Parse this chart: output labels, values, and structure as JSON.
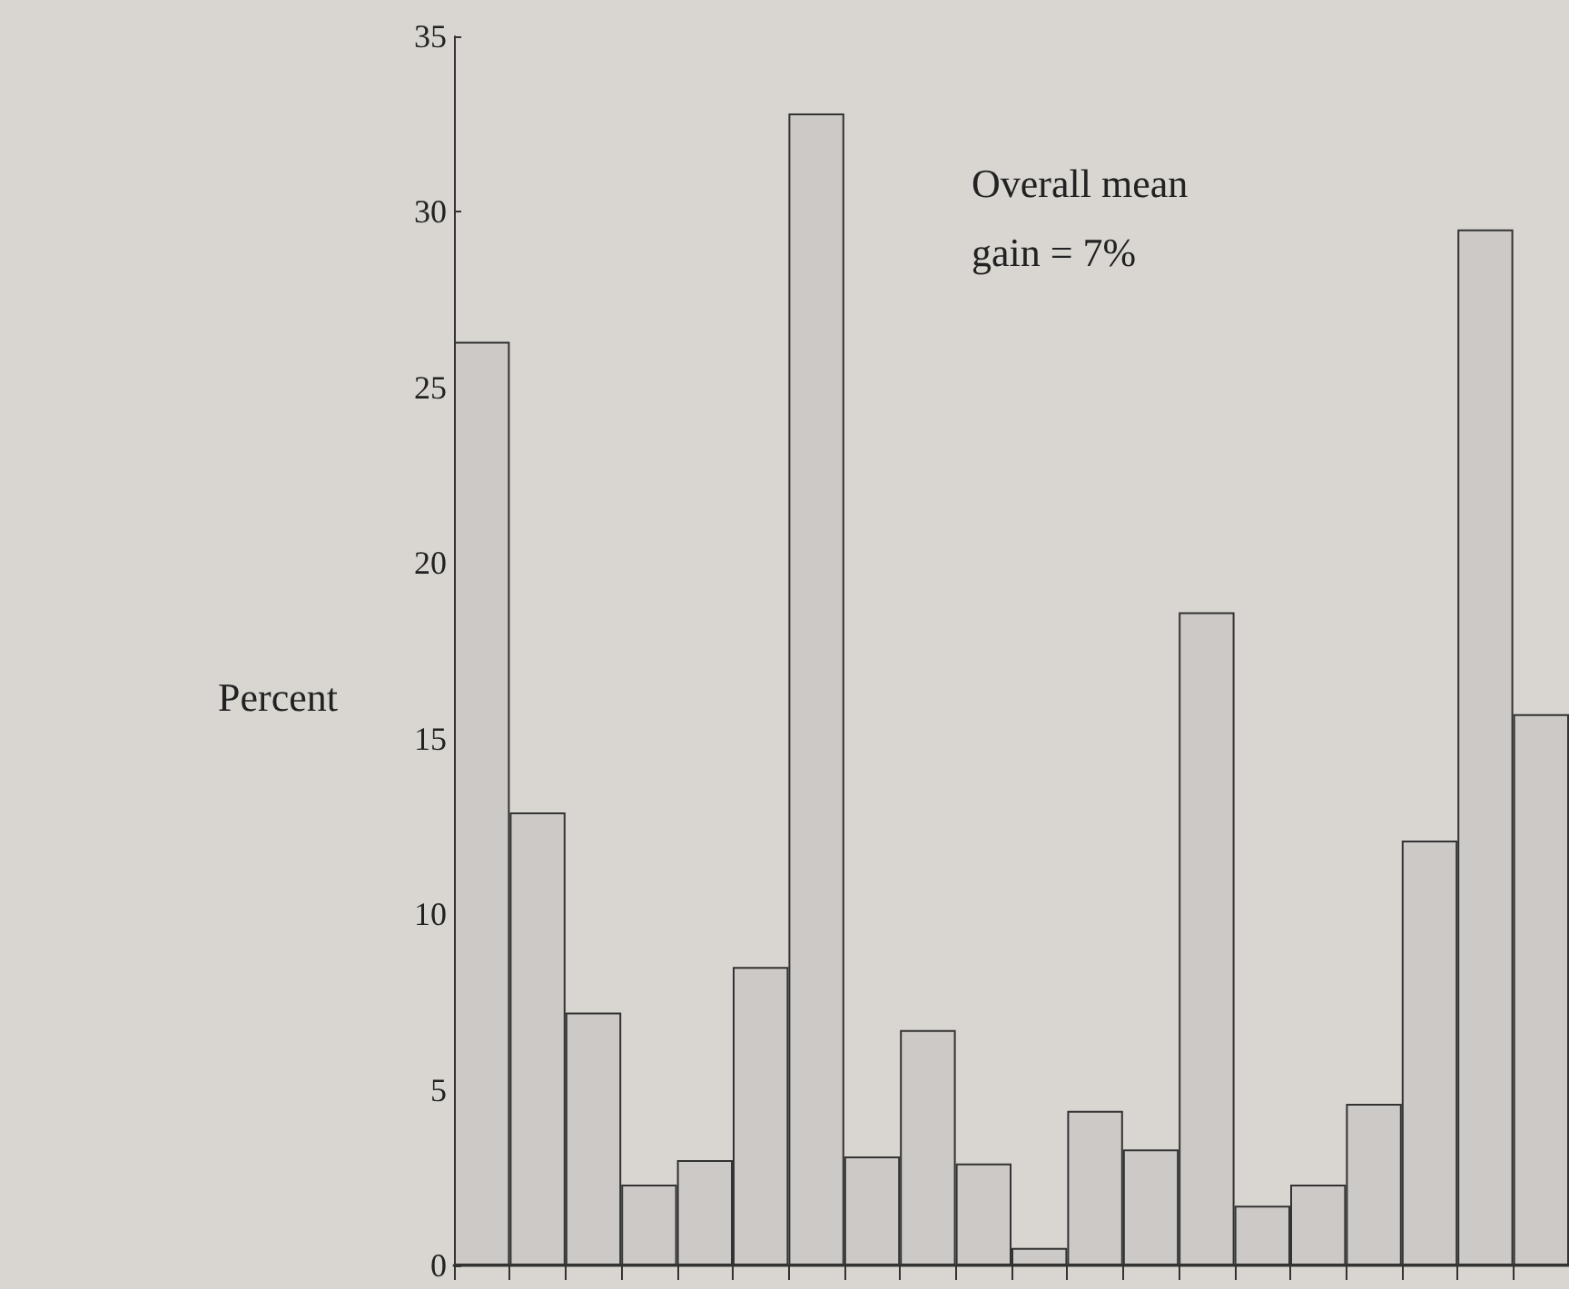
{
  "chart_data": {
    "type": "bar",
    "ylabel": "Percent",
    "annotations": [
      "Overall mean gain = 7%"
    ],
    "categories": [
      null,
      null,
      null,
      null,
      null,
      null,
      null,
      null,
      null,
      null,
      null,
      null,
      null,
      null,
      null,
      null,
      null,
      null,
      null,
      null
    ],
    "values": [
      26.3,
      12.9,
      7.2,
      2.3,
      3.0,
      8.5,
      32.8,
      3.1,
      6.7,
      2.9,
      0.5,
      4.4,
      3.3,
      18.6,
      1.7,
      2.3,
      4.6,
      12.1,
      29.5,
      15.7
    ],
    "color": "#cdc9c6",
    "ylim": [
      0,
      35
    ],
    "yticks": [
      0,
      5,
      10,
      15,
      20,
      25,
      30,
      35
    ],
    "grid": false
  }
}
